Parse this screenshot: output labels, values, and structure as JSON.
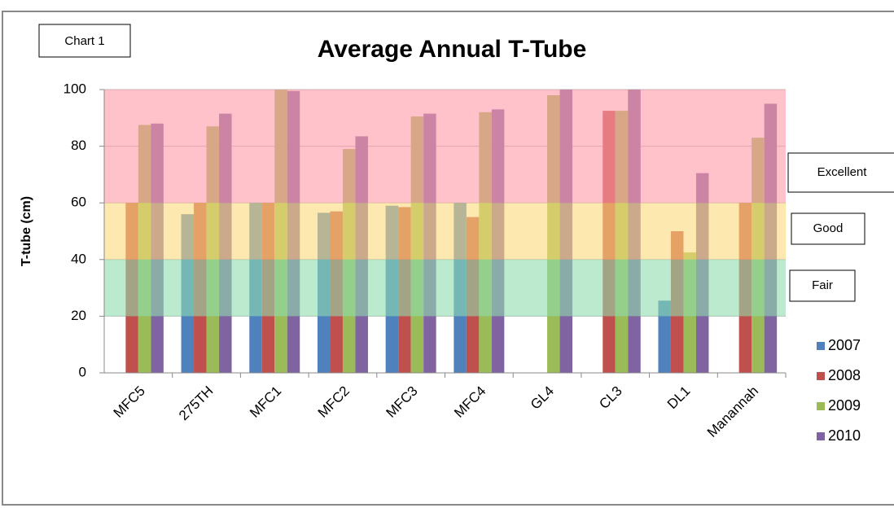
{
  "chart_data": {
    "type": "bar",
    "title": "Average Annual T-Tube",
    "chart_label": "Chart 1",
    "y_label": "T-tube (cm)",
    "categories": [
      "MFC5",
      "275TH",
      "MFC1",
      "MFC2",
      "MFC3",
      "MFC4",
      "GL4",
      "CL3",
      "DL1",
      "Manannah"
    ],
    "series": [
      {
        "name": "2007",
        "color": "#4f81bd",
        "values": [
          null,
          56,
          60,
          56.5,
          59,
          60,
          null,
          null,
          25.5,
          null
        ]
      },
      {
        "name": "2008",
        "color": "#c0504d",
        "values": [
          60,
          60,
          60,
          57,
          58.5,
          55,
          null,
          92.5,
          50,
          60
        ]
      },
      {
        "name": "2009",
        "color": "#9bbb59",
        "values": [
          87.5,
          87,
          100,
          79,
          90.5,
          92,
          98,
          92.5,
          42.5,
          83
        ]
      },
      {
        "name": "2010",
        "color": "#8064a2",
        "values": [
          88,
          91.5,
          99.5,
          83.5,
          91.5,
          93,
          100,
          100,
          70.5,
          95
        ]
      }
    ],
    "bands": [
      {
        "label": "Excellent",
        "from": 60,
        "to": 100,
        "color": "#ff9aa6"
      },
      {
        "label": "Good",
        "from": 40,
        "to": 60,
        "color": "#fcd97a"
      },
      {
        "label": "Fair",
        "from": 20,
        "to": 40,
        "color": "#8fdcad"
      }
    ],
    "ylim": [
      0,
      100
    ],
    "yticks": [
      0,
      20,
      40,
      60,
      80,
      100
    ],
    "grid": true
  }
}
